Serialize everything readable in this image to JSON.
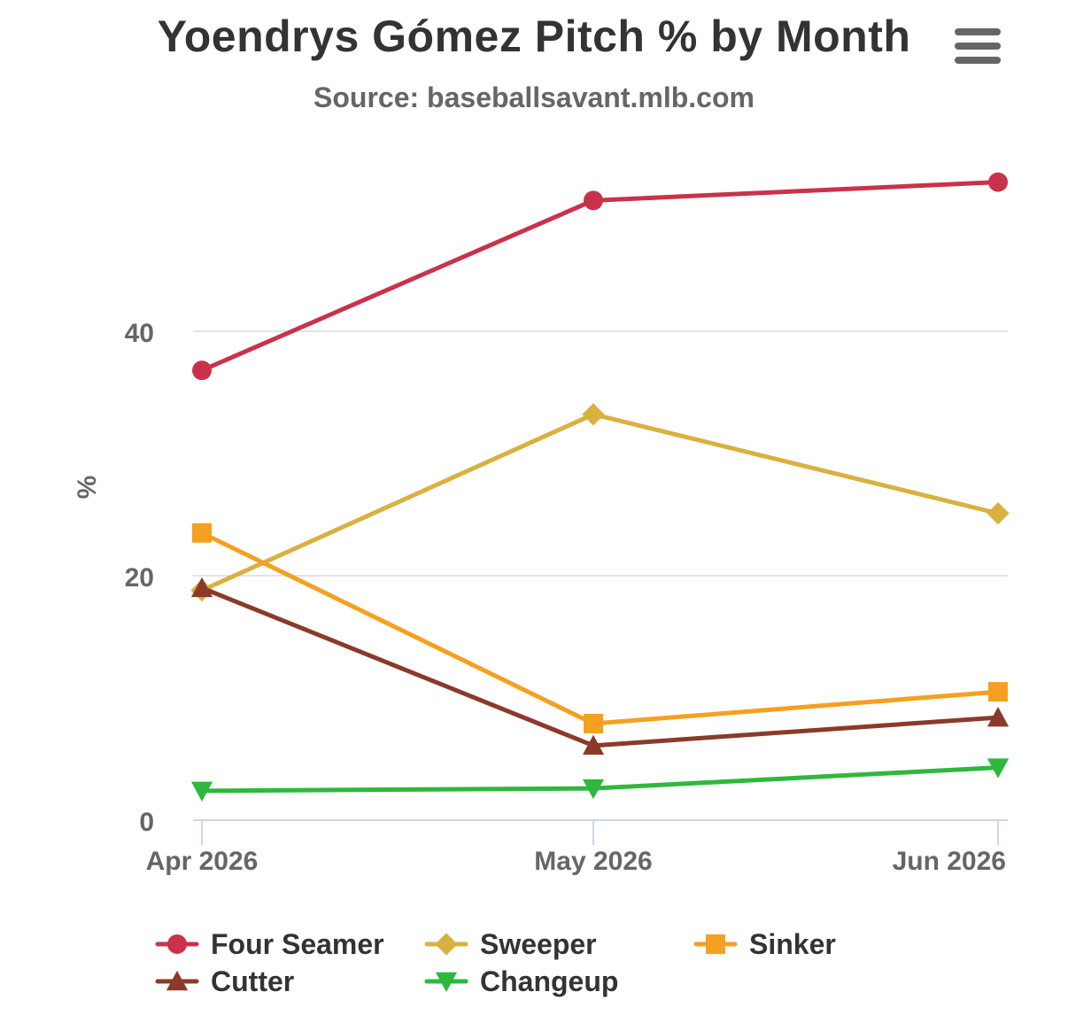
{
  "chart": {
    "title": "Yoendrys Gómez Pitch % by Month",
    "subtitle": "Source: baseballsavant.mlb.com",
    "menu_icon": "hamburger-menu-icon"
  },
  "chart_data": {
    "type": "line",
    "title": "Yoendrys Gómez Pitch % by Month",
    "subtitle": "Source: baseballsavant.mlb.com",
    "xlabel": "",
    "ylabel": "%",
    "categories": [
      "Apr 2026",
      "May 2026",
      "Jun 2026"
    ],
    "ylim": [
      0,
      55
    ],
    "yticks": [
      0,
      20,
      40
    ],
    "grid": "horizontal",
    "legend_position": "bottom",
    "series": [
      {
        "name": "Four Seamer",
        "color": "#c8334b",
        "marker": "circle",
        "values": [
          36.8,
          50.7,
          52.2
        ]
      },
      {
        "name": "Sweeper",
        "color": "#d9b13f",
        "marker": "diamond",
        "values": [
          18.8,
          33.2,
          25.1
        ]
      },
      {
        "name": "Sinker",
        "color": "#f5a020",
        "marker": "square",
        "values": [
          23.5,
          7.9,
          10.5
        ]
      },
      {
        "name": "Cutter",
        "color": "#8b3a2a",
        "marker": "triangle-up",
        "values": [
          19.0,
          6.1,
          8.4
        ]
      },
      {
        "name": "Changeup",
        "color": "#2eb83c",
        "marker": "triangle-down",
        "values": [
          2.4,
          2.6,
          4.3
        ]
      }
    ]
  }
}
